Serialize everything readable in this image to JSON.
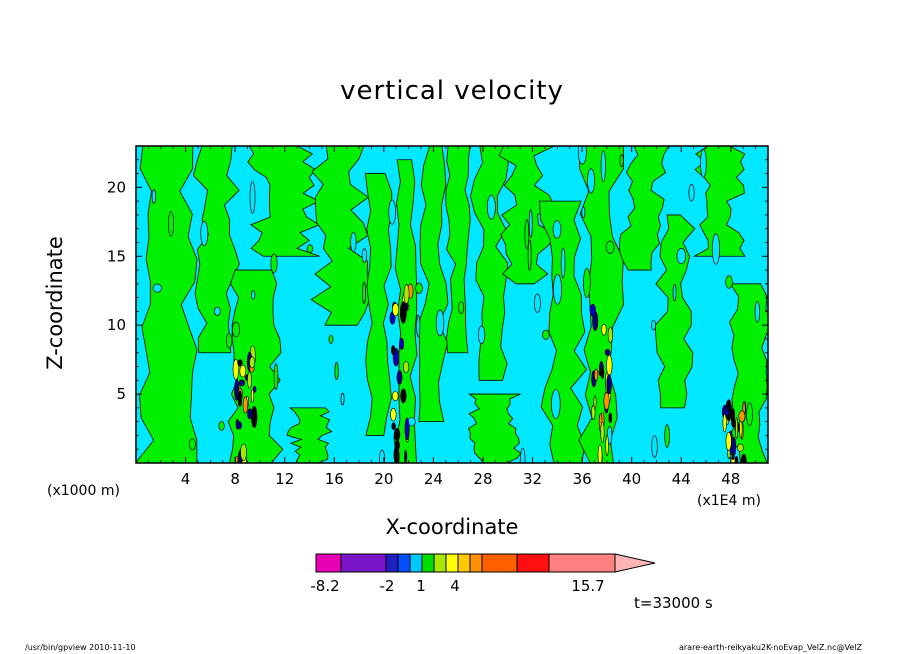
{
  "chart_data": {
    "type": "heatmap",
    "title": "vertical velocity",
    "xlabel": "X-coordinate",
    "ylabel": "Z-coordinate",
    "x_unit_left": "(x1000 m)",
    "x_unit_right": "(x1E4 m)",
    "xlim": [
      0,
      51
    ],
    "ylim": [
      0,
      23
    ],
    "x_ticks": [
      4,
      8,
      12,
      16,
      20,
      24,
      28,
      32,
      36,
      40,
      44,
      48
    ],
    "y_ticks": [
      5,
      10,
      15,
      20
    ],
    "time_label": "t=33000 s",
    "colorbar": {
      "labels": [
        {
          "text": "-8.2",
          "value": -8.2
        },
        {
          "text": "-2",
          "value": -2
        },
        {
          "text": "1",
          "value": 1
        },
        {
          "text": "4",
          "value": 4
        },
        {
          "text": "15.7",
          "value": 15.7
        }
      ],
      "colors": [
        "#e800b4",
        "#7a14c8",
        "#2020c0",
        "#0050ff",
        "#00c8ff",
        "#00e000",
        "#a8e800",
        "#ffff00",
        "#ffc800",
        "#ff9000",
        "#ff6000",
        "#ff1010",
        "#ff8080",
        "#ffb4b4"
      ],
      "dominant_fields": {
        "weak_negative": "#00e8ff",
        "weak_positive": "#00f000"
      },
      "updraft_cores_x": [
        8.8,
        21.5,
        37.5,
        48.3
      ]
    }
  },
  "footer": {
    "left": "/usr/bin/gpview   2010-11-10",
    "right": "arare-earth-reikyaku2K-noEvap_VelZ.nc@VelZ"
  }
}
